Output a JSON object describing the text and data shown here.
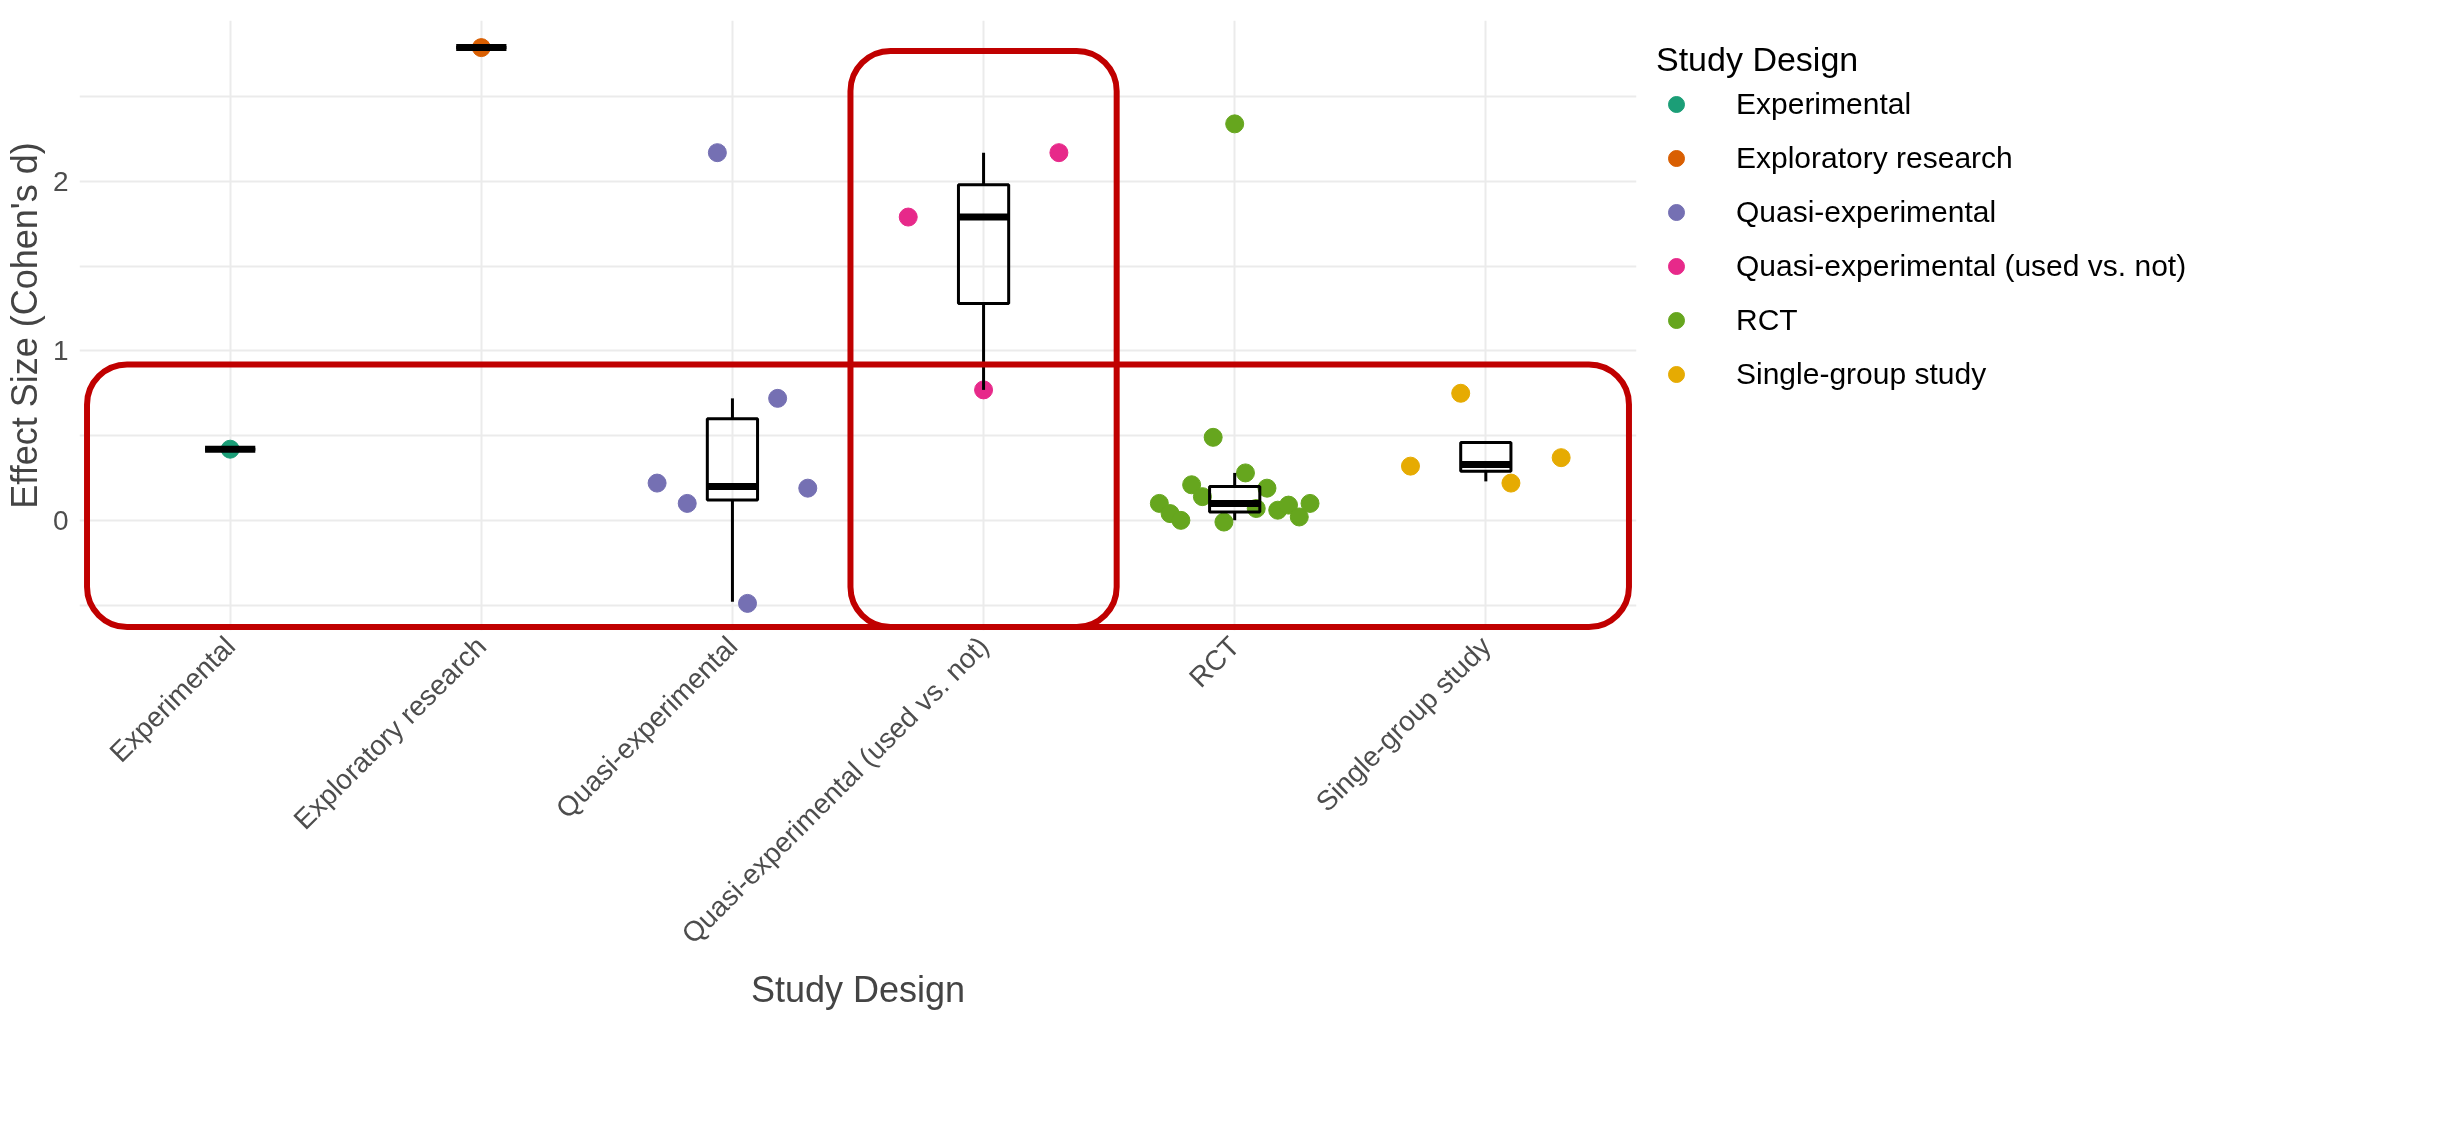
{
  "chart_data": {
    "type": "box",
    "xlabel": "Study Design",
    "ylabel": "Effect Size (Cohen's d)",
    "legend_title": "Study Design",
    "categories": [
      "Experimental",
      "Exploratory research",
      "Quasi-experimental",
      "Quasi-experimental (used vs. not)",
      "RCT",
      "Single-group study"
    ],
    "boxes": [
      {
        "low": 0.42,
        "q1": 0.42,
        "median": 0.42,
        "q3": 0.42,
        "high": 0.42
      },
      {
        "low": 2.79,
        "q1": 2.79,
        "median": 2.79,
        "q3": 2.79,
        "high": 2.79
      },
      {
        "low": -0.48,
        "q1": 0.12,
        "median": 0.2,
        "q3": 0.6,
        "high": 0.72
      },
      {
        "low": 0.77,
        "q1": 1.28,
        "median": 1.79,
        "q3": 1.98,
        "high": 2.17
      },
      {
        "low": 0.0,
        "q1": 0.05,
        "median": 0.1,
        "q3": 0.2,
        "high": 0.28
      },
      {
        "low": 0.23,
        "q1": 0.29,
        "median": 0.33,
        "q3": 0.46,
        "high": 0.46
      }
    ],
    "series": [
      {
        "type": "scatter",
        "name": "Experimental",
        "color": "#1b9e77",
        "x": [
          "Experimental"
        ],
        "values": [
          0.42
        ]
      },
      {
        "type": "scatter",
        "name": "Exploratory research",
        "color": "#d95f02",
        "x": [
          "Exploratory research"
        ],
        "values": [
          2.79
        ]
      },
      {
        "type": "scatter",
        "name": "Quasi-experimental",
        "color": "#7570b3",
        "x": [
          "Quasi-experimental",
          "Quasi-experimental",
          "Quasi-experimental",
          "Quasi-experimental",
          "Quasi-experimental",
          "Quasi-experimental"
        ],
        "values": [
          0.22,
          0.1,
          2.17,
          -0.49,
          0.72,
          0.19
        ]
      },
      {
        "type": "scatter",
        "name": "Quasi-experimental (used vs. not)",
        "color": "#e7298a",
        "x": [
          "Quasi-experimental (used vs. not)",
          "Quasi-experimental (used vs. not)",
          "Quasi-experimental (used vs. not)"
        ],
        "values": [
          1.79,
          0.77,
          2.17
        ]
      },
      {
        "type": "scatter",
        "name": "RCT",
        "color": "#66a61e",
        "x": [
          "RCT",
          "RCT",
          "RCT",
          "RCT",
          "RCT",
          "RCT",
          "RCT",
          "RCT",
          "RCT",
          "RCT",
          "RCT",
          "RCT",
          "RCT",
          "RCT",
          "RCT"
        ],
        "values": [
          0.1,
          0.04,
          0.0,
          0.21,
          0.14,
          0.49,
          -0.01,
          2.34,
          0.28,
          0.07,
          0.19,
          0.06,
          0.09,
          0.02,
          0.1
        ]
      },
      {
        "type": "scatter",
        "name": "Single-group study",
        "color": "#e6ab02",
        "x": [
          "Single-group study",
          "Single-group study",
          "Single-group study",
          "Single-group study"
        ],
        "values": [
          0.32,
          0.75,
          0.22,
          0.37
        ]
      }
    ],
    "ylim": [
      -0.65,
      2.95
    ],
    "yticks": [
      {
        "value": -0.5,
        "label": null
      },
      0,
      {
        "value": 0.5,
        "label": null
      },
      1,
      {
        "value": 1.5,
        "label": null
      },
      2,
      {
        "value": 2.5,
        "label": null
      }
    ],
    "grid": true,
    "legend": "right",
    "marker": "circle"
  }
}
